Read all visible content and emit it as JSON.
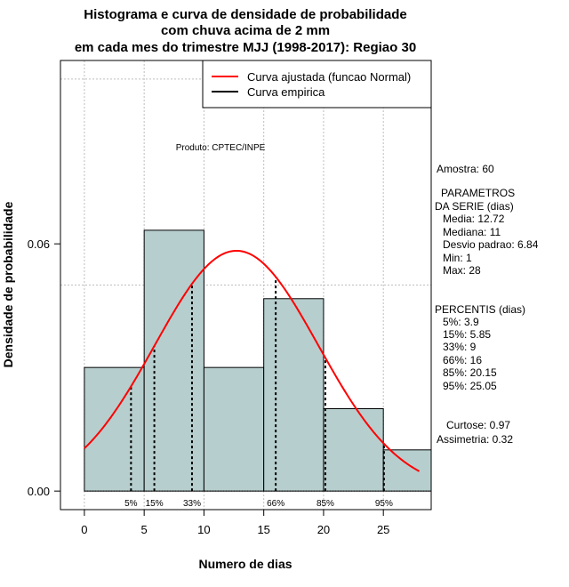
{
  "chart_data": {
    "type": "bar",
    "title_lines": [
      "Histograma e curva de densidade de probabilidade",
      "com chuva acima de 2 mm",
      "em cada mes do trimestre MJJ (1998-2017): Regiao 30"
    ],
    "xlabel": "Numero de dias",
    "ylabel": "Densidade de probabilidade",
    "xlim": [
      -2,
      29
    ],
    "ylim": [
      -0.0045,
      0.1045
    ],
    "x_ticks": [
      "0",
      "5",
      "10",
      "15",
      "20",
      "25"
    ],
    "x_tick_values": [
      0,
      5,
      10,
      15,
      20,
      25
    ],
    "y_ticks": [
      "0.00",
      "0.06"
    ],
    "y_tick_values": [
      0,
      0.06
    ],
    "grid": true,
    "grid_x": [
      0,
      5,
      10,
      15,
      20,
      25
    ],
    "grid_y": [
      0.05,
      0.1
    ],
    "bins": [
      {
        "x0": 0,
        "x1": 5,
        "density": 0.03
      },
      {
        "x0": 5,
        "x1": 10,
        "density": 0.0633
      },
      {
        "x0": 10,
        "x1": 15,
        "density": 0.03
      },
      {
        "x0": 15,
        "x1": 20,
        "density": 0.0467
      },
      {
        "x0": 20,
        "x1": 25,
        "density": 0.02
      },
      {
        "x0": 25,
        "x1": 30,
        "density": 0.01
      }
    ],
    "normal_fit": {
      "mean": 12.72,
      "sd": 6.84,
      "x_from": 0,
      "x_to": 28
    },
    "percentiles": [
      {
        "label": "5%",
        "value": 3.9
      },
      {
        "label": "15%",
        "value": 5.85
      },
      {
        "label": "33%",
        "value": 9
      },
      {
        "label": "66%",
        "value": 16
      },
      {
        "label": "85%",
        "value": 20.15
      },
      {
        "label": "95%",
        "value": 25.05
      }
    ],
    "legend": {
      "position": "top-right",
      "entries": [
        {
          "label": "Curva ajustada (funcao Normal)",
          "color": "#ff0000"
        },
        {
          "label": "Curva empirica",
          "color": "#000000"
        }
      ]
    },
    "product_note": "Produto: CPTEC/INPE",
    "colors": {
      "bar_fill": "#b7cece",
      "bar_stroke": "#000000",
      "curve": "#ff0000",
      "grid": "#bebebe"
    }
  },
  "stats_panel": {
    "amostra": "Amostra: 60",
    "params_title_1": "PARAMETROS",
    "params_title_2": "DA SERIE (dias)",
    "media": "Media: 12.72",
    "mediana": "Mediana: 11",
    "desvio": "Desvio padrao: 6.84",
    "min": "Min: 1",
    "max": "Max: 28",
    "percentis_title": "PERCENTIS (dias)",
    "p5": "5%: 3.9",
    "p15": "15%: 5.85",
    "p33": "33%: 9",
    "p66": "66%: 16",
    "p85": "85%: 20.15",
    "p95": "95%: 25.05",
    "curtose": "Curtose: 0.97",
    "assimetria": "Assimetria: 0.32"
  }
}
